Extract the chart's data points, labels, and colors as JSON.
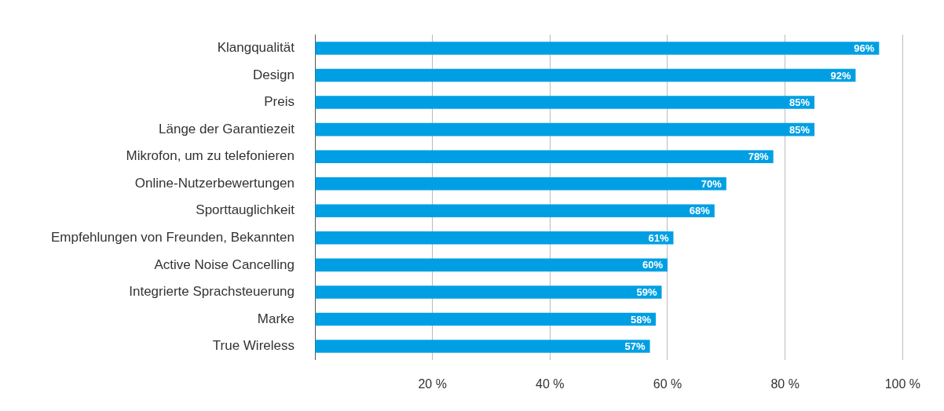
{
  "chart_data": {
    "type": "bar",
    "orientation": "horizontal",
    "categories": [
      "Klangqualität",
      "Design",
      "Preis",
      "Länge der Garantiezeit",
      "Mikrofon, um zu telefonieren",
      "Online-Nutzerbewertungen",
      "Sporttauglichkeit",
      "Empfehlungen von Freunden, Bekannten",
      "Active Noise Cancelling",
      "Integrierte Sprachsteuerung",
      "Marke",
      "True Wireless"
    ],
    "values": [
      96,
      92,
      85,
      85,
      78,
      70,
      68,
      61,
      60,
      59,
      58,
      57
    ],
    "value_labels": [
      "96%",
      "92%",
      "85%",
      "85%",
      "78%",
      "70%",
      "68%",
      "61%",
      "60%",
      "59%",
      "58%",
      "57%"
    ],
    "color": "#009fe3",
    "xlim": [
      0,
      100
    ],
    "xticks": [
      {
        "value": 0,
        "label": null
      },
      {
        "value": 20,
        "label": "20 %"
      },
      {
        "value": 40,
        "label": "40 %"
      },
      {
        "value": 60,
        "label": "60 %"
      },
      {
        "value": 80,
        "label": "80 %"
      },
      {
        "value": 100,
        "label": "100 %"
      }
    ],
    "grid": "x"
  }
}
